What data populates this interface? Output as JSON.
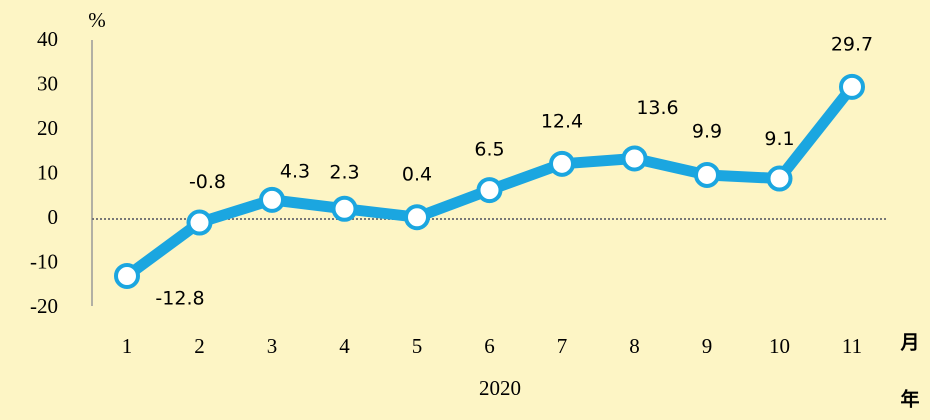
{
  "chart_data": {
    "type": "line",
    "y_label": "%",
    "x_label": "2020",
    "x_unit": "月",
    "year_unit": "年",
    "categories": [
      "1",
      "2",
      "3",
      "4",
      "5",
      "6",
      "7",
      "8",
      "9",
      "10",
      "11"
    ],
    "series": [
      {
        "color": "#1ba6e0",
        "values": [
          -12.8,
          -0.8,
          4.3,
          2.3,
          0.4,
          6.5,
          12.4,
          13.6,
          9.9,
          9.1,
          29.7
        ]
      }
    ],
    "ylim": [
      -20,
      40
    ],
    "yticks": [
      -20,
      -10,
      0,
      10,
      20,
      30,
      40
    ],
    "zero_line": true
  }
}
